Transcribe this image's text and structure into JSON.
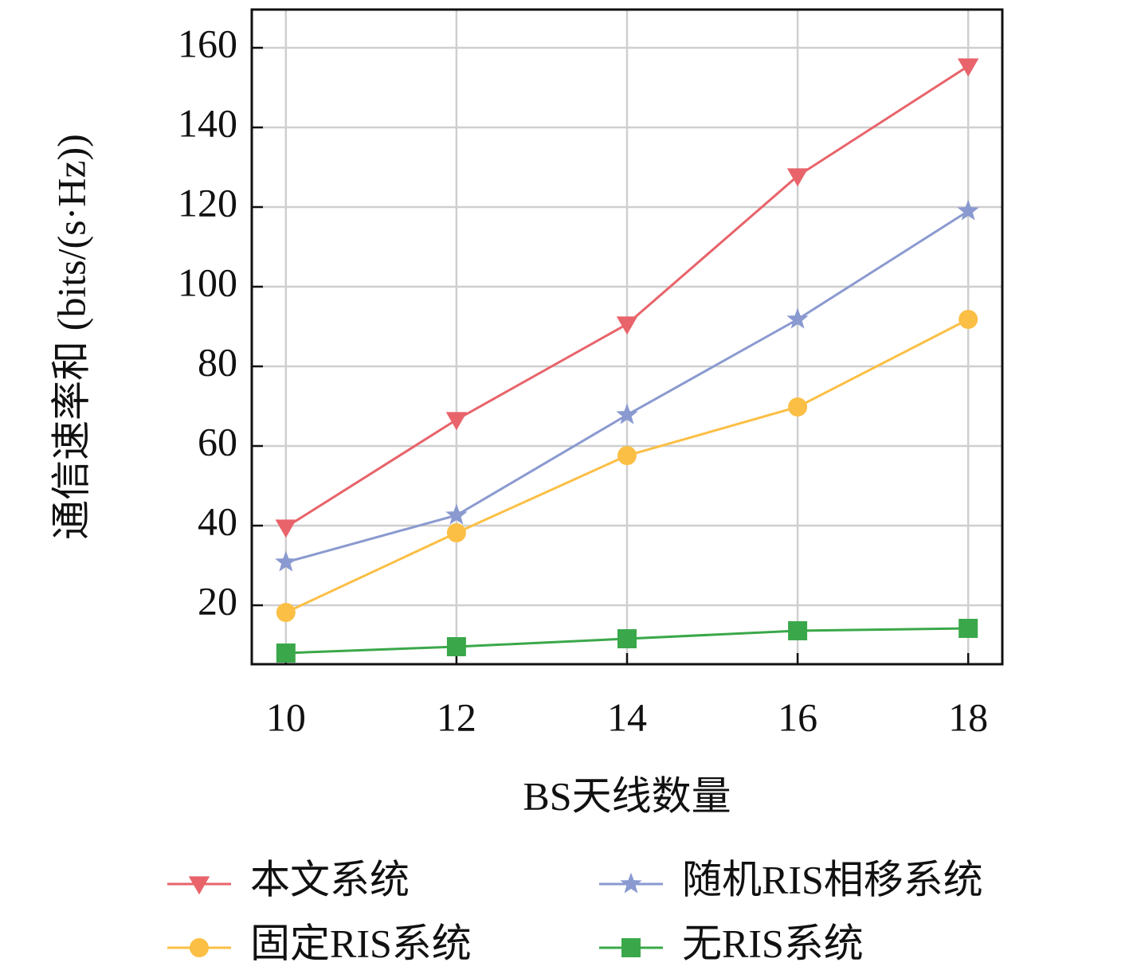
{
  "chart_data": {
    "type": "line",
    "xlabel": "BS天线数量",
    "ylabel": "通信速率和 (bits/(s·Hz))",
    "x": [
      10,
      12,
      14,
      16,
      18
    ],
    "xlim": [
      9.6,
      18.4
    ],
    "xticks": [
      10,
      12,
      14,
      16,
      18
    ],
    "ylim": [
      5.2,
      169.6
    ],
    "yticks": [
      20,
      40,
      60,
      80,
      100,
      120,
      140,
      160
    ],
    "grid": true,
    "legend": "bottom",
    "series": [
      {
        "name": "本文系统",
        "color": "#e8636a",
        "marker": "triangle-down",
        "values": [
          39.6,
          66.6,
          90.6,
          127.8,
          155.4
        ]
      },
      {
        "name": "随机RIS相移系统",
        "color": "#8a9ad0",
        "marker": "star",
        "values": [
          30.8,
          42.6,
          67.8,
          91.8,
          119
        ]
      },
      {
        "name": "固定RIS系统",
        "color": "#fbbf45",
        "marker": "circle",
        "values": [
          18.2,
          38.2,
          57.6,
          69.8,
          91.8
        ]
      },
      {
        "name": "无RIS系统",
        "color": "#3aa84a",
        "marker": "square",
        "values": [
          8,
          9.6,
          11.6,
          13.6,
          14.2
        ]
      }
    ]
  }
}
